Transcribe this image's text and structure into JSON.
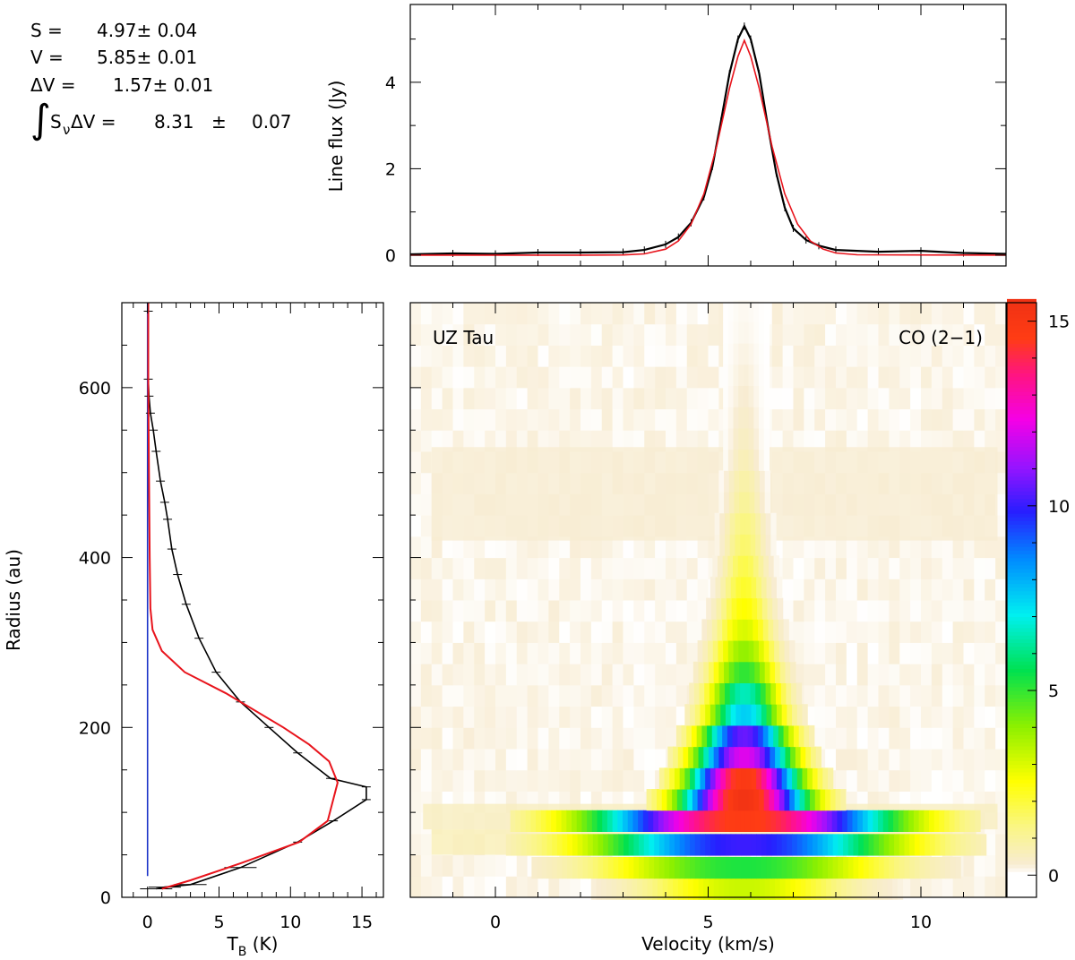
{
  "fit_results": {
    "s_label": "S =",
    "s_value": "4.97± 0.04",
    "v_label": "V =",
    "v_value": "5.85± 0.01",
    "dv_label": "ΔV =",
    "dv_value": "1.57± 0.01",
    "int_label": "S",
    "int_sub": "ν",
    "int_suffix": "ΔV =",
    "int_value": "8.31",
    "int_pm": "±",
    "int_err": "0.07"
  },
  "colors": {
    "data": "#000000",
    "model": "#e8141c",
    "baseline": "#1a33c8"
  },
  "chart_data": [
    {
      "type": "line",
      "ylabel": "Line flux (Jy)",
      "xlim": [
        -2.0,
        12.0
      ],
      "ylim": [
        -0.25,
        5.8
      ],
      "yticks": [
        "0",
        "2",
        "4"
      ],
      "series": [
        {
          "x": [
            -2.0,
            -1.0,
            0.0,
            1.0,
            2.0,
            3.0,
            3.5,
            4.0,
            4.3,
            4.6,
            4.9,
            5.1,
            5.3,
            5.5,
            5.7,
            5.85,
            6.0,
            6.2,
            6.4,
            6.6,
            6.8,
            7.0,
            7.3,
            7.6,
            8.0,
            9.0,
            10.0,
            11.0,
            12.0
          ],
          "values": [
            0.02,
            0.04,
            0.03,
            0.06,
            0.06,
            0.07,
            0.12,
            0.25,
            0.42,
            0.75,
            1.35,
            2.05,
            3.1,
            4.2,
            5.0,
            5.3,
            5.0,
            4.2,
            3.0,
            1.9,
            1.1,
            0.62,
            0.35,
            0.22,
            0.12,
            0.08,
            0.1,
            0.05,
            0.03
          ]
        },
        {
          "x": [
            -2.0,
            2.0,
            3.0,
            3.5,
            4.0,
            4.3,
            4.6,
            4.9,
            5.2,
            5.5,
            5.7,
            5.85,
            6.0,
            6.2,
            6.5,
            6.8,
            7.1,
            7.4,
            7.7,
            8.0,
            8.5,
            12.0
          ],
          "values": [
            0,
            0,
            0.005,
            0.03,
            0.14,
            0.33,
            0.72,
            1.42,
            2.52,
            3.86,
            4.6,
            4.97,
            4.6,
            3.86,
            2.52,
            1.42,
            0.72,
            0.33,
            0.14,
            0.05,
            0.01,
            0
          ]
        }
      ]
    },
    {
      "type": "line",
      "xlabel": "T_B (K)",
      "ylabel": "Radius (au)",
      "xlim": [
        -1.8,
        16.5
      ],
      "ylim": [
        0,
        700
      ],
      "xticks": [
        "0",
        "5",
        "10",
        "15"
      ],
      "yticks": [
        "0",
        "200",
        "400",
        "600"
      ],
      "series": [
        {
          "x": [
            0.05,
            0.05,
            0.1,
            0.2,
            0.4,
            0.6,
            0.9,
            1.2,
            1.4,
            1.7,
            2.1,
            2.7,
            3.6,
            4.8,
            6.5,
            8.5,
            10.5,
            12.8,
            15.3,
            15.3,
            13.0,
            10.5,
            6.5,
            3.0,
            1.2,
            0.6
          ],
          "y": [
            690,
            610,
            590,
            570,
            550,
            525,
            490,
            465,
            445,
            410,
            380,
            345,
            305,
            265,
            230,
            200,
            170,
            140,
            130,
            115,
            90,
            65,
            35,
            15,
            12,
            10
          ]
        },
        {
          "x": [
            0.05,
            0.05,
            0.1,
            0.15,
            0.2,
            0.35,
            1.0,
            2.6,
            5.5,
            9.5,
            11.3,
            12.7,
            13.3,
            12.6,
            10.6,
            6.5,
            3.0,
            1.0
          ],
          "y": [
            700,
            600,
            500,
            400,
            340,
            315,
            290,
            265,
            240,
            200,
            180,
            160,
            135,
            90,
            65,
            40,
            20,
            10
          ]
        },
        {
          "x": [
            0.0,
            0.0
          ],
          "y": [
            25,
            700
          ]
        }
      ]
    },
    {
      "type": "heatmap",
      "title_left": "UZ Tau",
      "title_right": "CO (2−1)",
      "xlabel": "Velocity (km/s)",
      "xlim": [
        -2.0,
        12.0
      ],
      "ylim": [
        0,
        700
      ],
      "xticks": [
        "0",
        "5",
        "10"
      ],
      "x_center": 5.85,
      "colorbar": {
        "min": 0,
        "max": 15.5,
        "ticks": [
          "0",
          "5",
          "10",
          "15"
        ]
      },
      "rows": [
        {
          "r": 10,
          "half_width": 3.6,
          "peak": 3.2
        },
        {
          "r": 35,
          "half_width": 5.0,
          "peak": 5.2
        },
        {
          "r": 62,
          "half_width": 5.6,
          "peak": 10.0
        },
        {
          "r": 90,
          "half_width": 5.5,
          "peak": 14.6
        },
        {
          "r": 115,
          "half_width": 2.3,
          "peak": 15.3
        },
        {
          "r": 140,
          "half_width": 2.0,
          "peak": 14.8
        },
        {
          "r": 165,
          "half_width": 1.8,
          "peak": 12.0
        },
        {
          "r": 190,
          "half_width": 1.6,
          "peak": 10.5
        },
        {
          "r": 215,
          "half_width": 1.4,
          "peak": 7.5
        },
        {
          "r": 240,
          "half_width": 1.3,
          "peak": 6.5
        },
        {
          "r": 265,
          "half_width": 1.2,
          "peak": 5.0
        },
        {
          "r": 290,
          "half_width": 1.1,
          "peak": 3.9
        },
        {
          "r": 315,
          "half_width": 1.0,
          "peak": 3.0
        },
        {
          "r": 340,
          "half_width": 0.9,
          "peak": 2.5
        },
        {
          "r": 365,
          "half_width": 0.8,
          "peak": 2.1
        },
        {
          "r": 390,
          "half_width": 0.75,
          "peak": 1.8
        },
        {
          "r": 415,
          "half_width": 0.7,
          "peak": 1.5
        },
        {
          "r": 440,
          "half_width": 0.7,
          "peak": 1.3
        },
        {
          "r": 465,
          "half_width": 0.6,
          "peak": 1.0
        },
        {
          "r": 490,
          "half_width": 0.6,
          "peak": 0.8
        },
        {
          "r": 515,
          "half_width": 0.5,
          "peak": 0.6
        },
        {
          "r": 540,
          "half_width": 0.5,
          "peak": 0.45
        },
        {
          "r": 565,
          "half_width": 0.5,
          "peak": 0.35
        },
        {
          "r": 590,
          "half_width": 0.5,
          "peak": 0.25
        },
        {
          "r": 615,
          "half_width": 0.5,
          "peak": 0.2
        },
        {
          "r": 640,
          "half_width": 0.5,
          "peak": 0.15
        },
        {
          "r": 665,
          "half_width": 0.5,
          "peak": 0.1
        },
        {
          "r": 690,
          "half_width": 0.5,
          "peak": 0.08
        }
      ],
      "halo": [
        {
          "r_min": 420,
          "r_max": 530,
          "x_min": -1.5,
          "x_max": 11.8,
          "level": 0.25
        },
        {
          "r_min": 80,
          "r_max": 110,
          "x_min": -1.7,
          "x_max": 11.8,
          "level": 0.5
        },
        {
          "r_min": 50,
          "r_max": 80,
          "x_min": -1.5,
          "x_max": 11.3,
          "level": 0.6
        }
      ]
    }
  ]
}
